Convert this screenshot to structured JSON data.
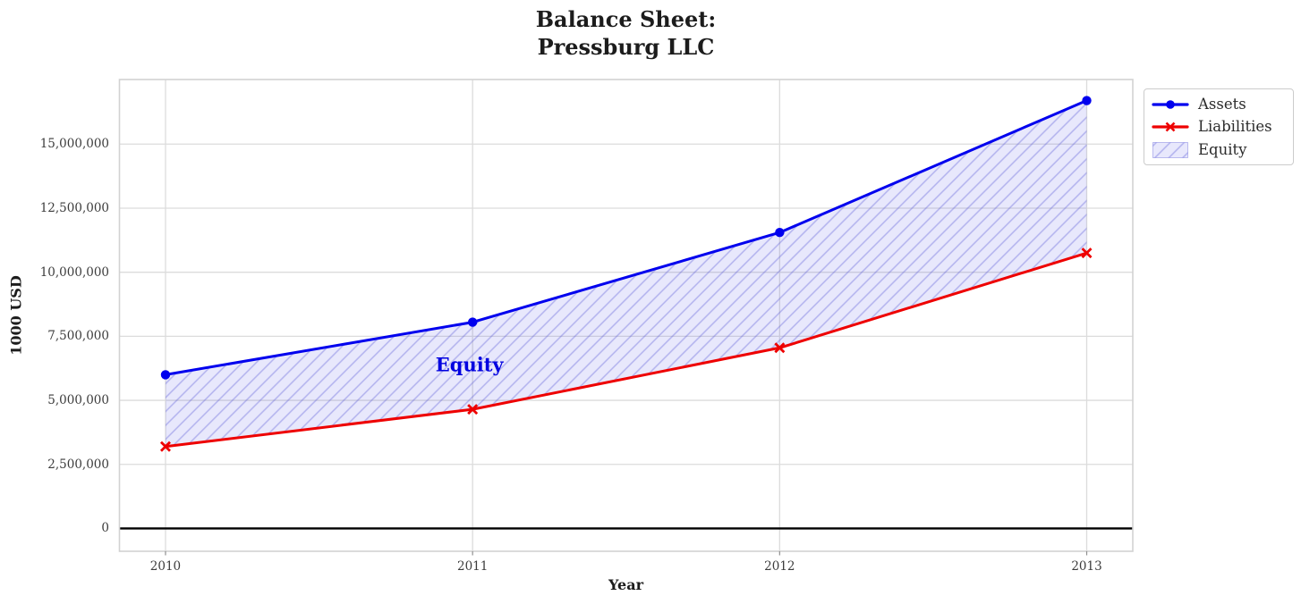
{
  "title": {
    "line1": "Balance Sheet:",
    "line2": "Pressburg LLC"
  },
  "chart_data": {
    "type": "line",
    "title": "Balance Sheet:\nPressburg LLC",
    "xlabel": "Year",
    "ylabel": "1000 USD",
    "x": [
      2010,
      2011,
      2012,
      2013
    ],
    "series": [
      {
        "name": "Assets",
        "values": [
          6000000,
          8050000,
          11550000,
          16700000
        ],
        "color": "#0000ee",
        "marker": "circle"
      },
      {
        "name": "Liabilities",
        "values": [
          3200000,
          4650000,
          7050000,
          10750000
        ],
        "color": "#ee0000",
        "marker": "x"
      }
    ],
    "fill_between": {
      "name": "Equity",
      "upper": "Assets",
      "lower": "Liabilities",
      "fill_color": "rgba(80,80,230,0.13)",
      "hatch_color": "rgba(90,90,215,0.38)"
    },
    "xticks": [
      2010,
      2011,
      2012,
      2013
    ],
    "xtick_labels": [
      "2010",
      "2011",
      "2012",
      "2013"
    ],
    "yticks": [
      0,
      2500000,
      5000000,
      7500000,
      10000000,
      12500000,
      15000000
    ],
    "ytick_labels": [
      "0",
      "2,500,000",
      "5,000,000",
      "7,500,000",
      "10,000,000",
      "12,500,000",
      "15,000,000"
    ],
    "xlim": [
      2009.85,
      2013.15
    ],
    "ylim": [
      -890000,
      17520000
    ],
    "grid": true,
    "grid_color": "#dcdcdc",
    "spine_color": "#d2d2d2",
    "zero_line": {
      "y": 0,
      "color": "#000000"
    },
    "annotation": {
      "text": "Equity",
      "x": 2010.99,
      "y": 6400000,
      "color": "#0000e0"
    },
    "legend": {
      "position": "outside-top-right",
      "entries": [
        {
          "label": "Assets",
          "swatch": "line-circle",
          "color": "#0000ee"
        },
        {
          "label": "Liabilities",
          "swatch": "line-x",
          "color": "#ee0000"
        },
        {
          "label": "Equity",
          "swatch": "patch-hatch",
          "color": "rgba(80,80,230,0.13)"
        }
      ]
    }
  }
}
